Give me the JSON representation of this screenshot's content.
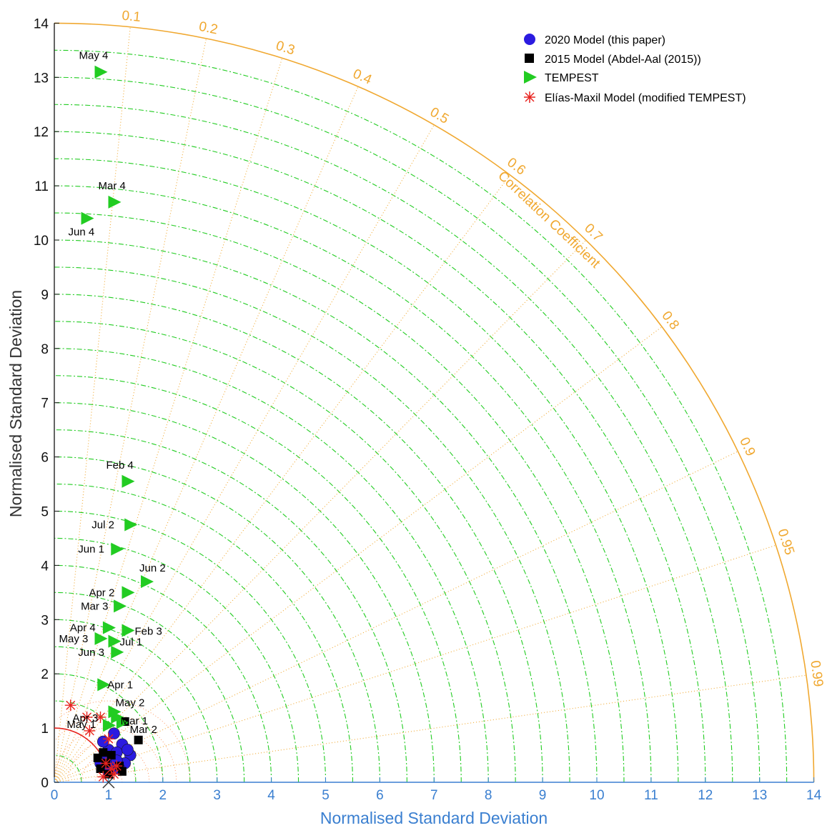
{
  "colors": {
    "tempest": "#22cc22",
    "model2020": "#2b1be0",
    "model2015": "#000000",
    "elias": "#e8231f",
    "corr": "#f0a830",
    "rms": "#ff9966",
    "axisX": "#3a7fd0",
    "ref": "#e8231f"
  },
  "chart_data": {
    "type": "taylor",
    "xlabel": "Normalised Standard Deviation",
    "ylabel": "Normalised Standard Deviation",
    "arc_label": "Correlation Coefficient",
    "std_range": [
      0,
      14
    ],
    "std_ticks": [
      "0",
      "1",
      "2",
      "3",
      "4",
      "5",
      "6",
      "7",
      "8",
      "9",
      "10",
      "11",
      "12",
      "13",
      "14"
    ],
    "correlation_ticks": [
      {
        "value": 0.1,
        "label": "0.1"
      },
      {
        "value": 0.2,
        "label": "0.2"
      },
      {
        "value": 0.3,
        "label": "0.3"
      },
      {
        "value": 0.4,
        "label": "0.4"
      },
      {
        "value": 0.5,
        "label": "0.5"
      },
      {
        "value": 0.6,
        "label": "0.6"
      },
      {
        "value": 0.7,
        "label": "0.7"
      },
      {
        "value": 0.8,
        "label": "0.8"
      },
      {
        "value": 0.9,
        "label": "0.9"
      },
      {
        "value": 0.95,
        "label": "0.95"
      },
      {
        "value": 0.99,
        "label": "0.99"
      }
    ],
    "reference": {
      "std": 1,
      "corr": 1
    },
    "legend_position": "top-right",
    "legend": [
      {
        "name": "2020 Model (this paper)",
        "marker": "circle",
        "color": "#2b1be0"
      },
      {
        "name": "2015 Model (Abdel-Aal (2015))",
        "marker": "square",
        "color": "#000000"
      },
      {
        "name": "TEMPEST",
        "marker": "triangle-right",
        "color": "#22cc22"
      },
      {
        "name": "Elías-Maxil Model (modified TEMPEST)",
        "marker": "asterisk",
        "color": "#e8231f"
      }
    ],
    "series": [
      {
        "name": "TEMPEST",
        "points": [
          {
            "label": "May 4",
            "x": 0.85,
            "y": 13.1
          },
          {
            "label": "Mar 4",
            "x": 1.1,
            "y": 10.7
          },
          {
            "label": "Jun 4",
            "x": 0.6,
            "y": 10.4
          },
          {
            "label": "Feb 4",
            "x": 1.35,
            "y": 5.55
          },
          {
            "label": "Jul 2",
            "x": 1.4,
            "y": 4.75
          },
          {
            "label": "Jun 1",
            "x": 1.15,
            "y": 4.3
          },
          {
            "label": "Jun 2",
            "x": 1.7,
            "y": 3.7
          },
          {
            "label": "Apr 2",
            "x": 1.35,
            "y": 3.5
          },
          {
            "label": "Mar 3",
            "x": 1.2,
            "y": 3.25
          },
          {
            "label": "Apr 4",
            "x": 1.0,
            "y": 2.85
          },
          {
            "label": "Feb 3",
            "x": 1.35,
            "y": 2.8
          },
          {
            "label": "May 3",
            "x": 0.85,
            "y": 2.65
          },
          {
            "label": "Jul 1",
            "x": 1.1,
            "y": 2.6
          },
          {
            "label": "Jun 3",
            "x": 1.15,
            "y": 2.4
          },
          {
            "label": "Apr 1",
            "x": 0.9,
            "y": 1.8
          },
          {
            "label": "May 2",
            "x": 1.1,
            "y": 1.3
          },
          {
            "label": "",
            "x": 1.15,
            "y": 1.2
          },
          {
            "label": "",
            "x": 1.25,
            "y": 1.1
          },
          {
            "label": "",
            "x": 1.0,
            "y": 1.05
          }
        ]
      },
      {
        "name": "2020 Model (this paper)",
        "points": [
          {
            "x": 1.1,
            "y": 0.9
          },
          {
            "x": 1.25,
            "y": 0.7
          },
          {
            "x": 1.4,
            "y": 0.5
          },
          {
            "x": 1.0,
            "y": 0.6
          },
          {
            "x": 1.15,
            "y": 0.55
          },
          {
            "x": 1.3,
            "y": 0.35
          },
          {
            "x": 0.95,
            "y": 0.45
          },
          {
            "x": 1.05,
            "y": 0.3
          },
          {
            "x": 1.2,
            "y": 0.25
          },
          {
            "x": 0.9,
            "y": 0.75
          },
          {
            "x": 1.35,
            "y": 0.6
          },
          {
            "x": 1.0,
            "y": 0.2
          },
          {
            "x": 0.85,
            "y": 0.35
          },
          {
            "x": 1.15,
            "y": 0.4
          }
        ]
      },
      {
        "name": "2015 Model (Abdel-Aal (2015))",
        "points": [
          {
            "label": "Mar 2",
            "x": 1.55,
            "y": 0.78
          },
          {
            "label": "Mar 1",
            "x": 1.3,
            "y": 1.12
          },
          {
            "x": 0.8,
            "y": 0.45
          },
          {
            "x": 0.85,
            "y": 0.25
          },
          {
            "x": 0.95,
            "y": 0.35
          },
          {
            "x": 1.05,
            "y": 0.5
          },
          {
            "x": 1.2,
            "y": 0.3
          },
          {
            "x": 1.25,
            "y": 0.2
          },
          {
            "x": 0.9,
            "y": 0.55
          },
          {
            "x": 1.0,
            "y": 0.15
          }
        ]
      },
      {
        "name": "Elías-Maxil Model (modified TEMPEST)",
        "points": [
          {
            "label": "Apr 3",
            "x": 0.6,
            "y": 1.2
          },
          {
            "label": "May 1",
            "x": 0.65,
            "y": 0.95
          },
          {
            "x": 0.3,
            "y": 1.42
          },
          {
            "x": 0.85,
            "y": 1.2
          },
          {
            "x": 1.0,
            "y": 0.8
          },
          {
            "x": 0.95,
            "y": 0.35
          },
          {
            "x": 1.05,
            "y": 0.25
          },
          {
            "x": 1.1,
            "y": 0.15
          },
          {
            "x": 0.9,
            "y": 0.1
          },
          {
            "x": 1.15,
            "y": 0.3
          }
        ]
      }
    ]
  }
}
